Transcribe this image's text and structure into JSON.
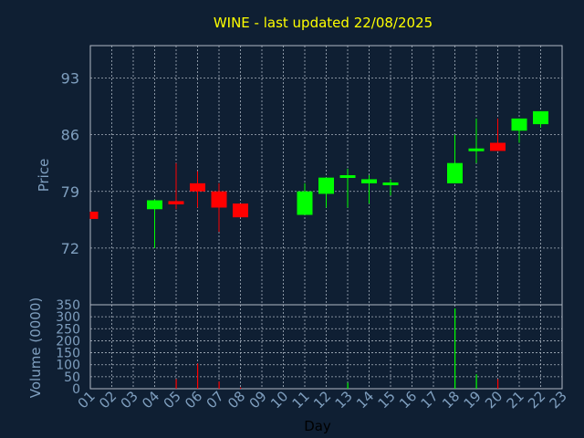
{
  "chart_data": [
    {
      "type": "candlestick",
      "title": "WINE - last updated 22/08/2025",
      "ylabel": "Price",
      "ylim": [
        65,
        97
      ],
      "yticks": [
        72,
        79,
        86,
        93
      ],
      "grid": true,
      "colors": {
        "up": "#00ff00",
        "down": "#ff0000",
        "grid": "#aab4c0",
        "text": "#7f9fbf",
        "title": "#ffff00",
        "background": "#0f1f33"
      },
      "x": [
        "01",
        "02",
        "03",
        "04",
        "05",
        "06",
        "07",
        "08",
        "09",
        "10",
        "11",
        "12",
        "13",
        "14",
        "15",
        "16",
        "17",
        "18",
        "19",
        "20",
        "21",
        "22",
        "23"
      ],
      "candles": [
        {
          "day": "01",
          "open": 76.5,
          "close": 75.6,
          "high": 76.5,
          "low": 75.6
        },
        {
          "day": "04",
          "open": 76.8,
          "close": 77.9,
          "high": 78.0,
          "low": 72.0
        },
        {
          "day": "05",
          "open": 77.8,
          "close": 77.4,
          "high": 82.5,
          "low": 76.8
        },
        {
          "day": "06",
          "open": 80.0,
          "close": 79.0,
          "high": 81.5,
          "low": 77.0
        },
        {
          "day": "07",
          "open": 79.0,
          "close": 77.0,
          "high": 80.0,
          "low": 74.0
        },
        {
          "day": "08",
          "open": 77.5,
          "close": 75.8,
          "high": 77.5,
          "low": 75.8
        },
        {
          "day": "11",
          "open": 76.1,
          "close": 79.0,
          "high": 80.0,
          "low": 76.1
        },
        {
          "day": "12",
          "open": 78.7,
          "close": 80.7,
          "high": 80.7,
          "low": 77.0
        },
        {
          "day": "13",
          "open": 80.7,
          "close": 81.0,
          "high": 81.8,
          "low": 77.0
        },
        {
          "day": "14",
          "open": 80.0,
          "close": 80.5,
          "high": 81.0,
          "low": 77.5
        },
        {
          "day": "15",
          "open": 79.9,
          "close": 80.1,
          "high": 80.5,
          "low": 78.5
        },
        {
          "day": "18",
          "open": 80.0,
          "close": 82.5,
          "high": 86.0,
          "low": 80.0
        },
        {
          "day": "19",
          "open": 84.0,
          "close": 84.3,
          "high": 88.0,
          "low": 82.5
        },
        {
          "day": "20",
          "open": 85.0,
          "close": 84.0,
          "high": 88.0,
          "low": 84.0
        },
        {
          "day": "21",
          "open": 86.5,
          "close": 88.0,
          "high": 88.0,
          "low": 85.0
        },
        {
          "day": "22",
          "open": 87.3,
          "close": 88.9,
          "high": 88.9,
          "low": 86.9
        }
      ]
    },
    {
      "type": "bar",
      "ylabel": "Volume (0000)",
      "xlabel": "Day",
      "ylim": [
        0,
        350
      ],
      "yticks": [
        0,
        50,
        100,
        150,
        200,
        250,
        300,
        350
      ],
      "grid": true,
      "x": [
        "01",
        "02",
        "03",
        "04",
        "05",
        "06",
        "07",
        "08",
        "09",
        "10",
        "11",
        "12",
        "13",
        "14",
        "15",
        "16",
        "17",
        "18",
        "19",
        "20",
        "21",
        "22",
        "23"
      ],
      "bars": [
        {
          "day": "05",
          "value": 40,
          "color": "#ff0000"
        },
        {
          "day": "06",
          "value": 105,
          "color": "#ff0000"
        },
        {
          "day": "07",
          "value": 30,
          "color": "#ff0000"
        },
        {
          "day": "08",
          "value": 5,
          "color": "#ff0000"
        },
        {
          "day": "13",
          "value": 25,
          "color": "#00ff00"
        },
        {
          "day": "18",
          "value": 335,
          "color": "#00ff00"
        },
        {
          "day": "19",
          "value": 60,
          "color": "#00ff00"
        },
        {
          "day": "20",
          "value": 40,
          "color": "#ff0000"
        }
      ]
    }
  ]
}
